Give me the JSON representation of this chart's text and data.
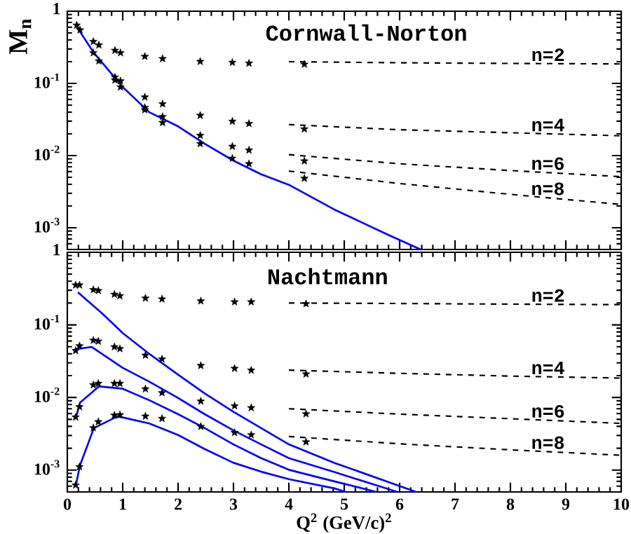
{
  "chart_data": [
    {
      "type": "line",
      "title": "Cornwall-Norton",
      "ylabel": "M$_{n}$",
      "xlim": [
        0,
        10
      ],
      "xticks": [
        0,
        1,
        2,
        3,
        4,
        5,
        6,
        7,
        8,
        9,
        10
      ],
      "ylim": [
        0.0005,
        1
      ],
      "yticks": [
        {
          "value": 0.001,
          "label": "10$^{-3}$"
        },
        {
          "value": 0.01,
          "label": "10$^{-2}$"
        },
        {
          "value": 0.1,
          "label": "10$^{-1}$"
        },
        1
      ],
      "log": "y",
      "tick_labels": "y",
      "series": [
        {
          "type": "scatter",
          "marker": "star",
          "color": "#000000",
          "x": [
            0.17,
            0.23,
            0.47,
            0.57,
            0.86,
            0.96,
            1.4,
            1.72,
            2.4,
            2.98,
            3.28,
            4.28
          ],
          "values": [
            0.64,
            0.55,
            0.38,
            0.34,
            0.286,
            0.265,
            0.236,
            0.22,
            0.201,
            0.195,
            0.19,
            0.184
          ]
        },
        {
          "type": "scatter",
          "marker": "star",
          "color": "#000000",
          "x": [
            0.47,
            0.57,
            0.86,
            0.96,
            1.4,
            1.72,
            2.4,
            2.98,
            3.28,
            4.28
          ],
          "values": [
            0.265,
            0.204,
            0.122,
            0.108,
            0.0646,
            0.0519,
            0.036,
            0.0298,
            0.0277,
            0.0233
          ]
        },
        {
          "type": "scatter",
          "marker": "star",
          "color": "#000000",
          "x": [
            0.86,
            0.96,
            1.4,
            1.72,
            2.4,
            2.98,
            3.28,
            4.28
          ],
          "values": [
            0.111,
            0.089,
            0.0462,
            0.0345,
            0.019,
            0.0134,
            0.0119,
            0.0084
          ]
        },
        {
          "type": "scatter",
          "marker": "star",
          "color": "#000000",
          "x": [
            1.4,
            1.72,
            2.4,
            2.98,
            3.28,
            4.28
          ],
          "values": [
            0.043,
            0.0286,
            0.0146,
            0.00916,
            0.00769,
            0.00483
          ]
        },
        {
          "type": "line",
          "name": "n=2",
          "line_style": "dashed",
          "color": "#000000",
          "x": [
            4,
            6,
            8,
            10
          ],
          "values": [
            0.2,
            0.193,
            0.189,
            0.186
          ]
        },
        {
          "type": "line",
          "name": "n=4",
          "line_style": "dashed",
          "color": "#000000",
          "x": [
            4,
            6,
            8,
            10
          ],
          "values": [
            0.0269,
            0.0228,
            0.0207,
            0.0188
          ]
        },
        {
          "type": "line",
          "name": "n=6",
          "line_style": "dashed",
          "color": "#000000",
          "x": [
            4,
            6,
            8,
            10
          ],
          "values": [
            0.0103,
            0.0077,
            0.0062,
            0.0051
          ]
        },
        {
          "type": "line",
          "name": "n=8",
          "line_style": "dashed",
          "color": "#000000",
          "x": [
            4,
            6,
            8,
            10
          ],
          "values": [
            0.0061,
            0.0041,
            0.0029,
            0.0021
          ]
        },
        {
          "type": "line",
          "line_style": "solid",
          "color": "#0000ff",
          "x": [
            0.17,
            0.48,
            1.0,
            1.48,
            2.0,
            2.48,
            3.0,
            3.5,
            4.0,
            4.82,
            5.79,
            6.38
          ],
          "values": [
            0.61,
            0.265,
            0.089,
            0.0399,
            0.0254,
            0.0146,
            0.0085,
            0.0055,
            0.00394,
            0.00179,
            0.0008,
            0.0005
          ]
        }
      ]
    },
    {
      "type": "line",
      "title": "Nachtmann",
      "xlabel": "Q$^{2}$ (GeV/c)$^{2}$",
      "xlim": [
        0,
        10
      ],
      "xticks": [
        0,
        1,
        2,
        3,
        4,
        5,
        6,
        7,
        8,
        9,
        10
      ],
      "ylim": [
        0.0005,
        1
      ],
      "yticks": [
        {
          "value": 0.001,
          "label": "10$^{-3}$"
        },
        {
          "value": 0.01,
          "label": "10$^{-2}$"
        },
        {
          "value": 0.1,
          "label": "10$^{-1}$"
        },
        1
      ],
      "log": "y",
      "series": [
        {
          "type": "scatter",
          "marker": "star",
          "color": "#000000",
          "x": [
            0.15,
            0.22,
            0.47,
            0.56,
            0.85,
            0.95,
            1.41,
            1.71,
            2.41,
            3.02,
            3.32,
            4.31
          ],
          "values": [
            0.353,
            0.353,
            0.305,
            0.296,
            0.263,
            0.251,
            0.233,
            0.227,
            0.213,
            0.207,
            0.207,
            0.195
          ]
        },
        {
          "type": "scatter",
          "marker": "star",
          "color": "#000000",
          "x": [
            0.15,
            0.22,
            0.47,
            0.56,
            0.85,
            0.95,
            1.41,
            1.71,
            2.41,
            3.02,
            3.32,
            4.31
          ],
          "values": [
            0.0442,
            0.0513,
            0.0612,
            0.0595,
            0.0497,
            0.0469,
            0.0381,
            0.0338,
            0.0275,
            0.0251,
            0.0237,
            0.021
          ]
        },
        {
          "type": "scatter",
          "marker": "star",
          "color": "#000000",
          "x": [
            0.15,
            0.22,
            0.47,
            0.56,
            0.85,
            0.95,
            1.41,
            1.71,
            2.41,
            3.02,
            3.32,
            4.31
          ],
          "values": [
            0.00536,
            0.00743,
            0.0149,
            0.0156,
            0.0156,
            0.0156,
            0.0131,
            0.0116,
            0.00888,
            0.00766,
            0.00721,
            0.00594
          ]
        },
        {
          "type": "scatter",
          "marker": "star",
          "color": "#000000",
          "x": [
            0.15,
            0.22,
            0.47,
            0.56,
            0.85,
            0.95,
            1.41,
            1.71,
            2.41,
            3.02,
            3.32,
            4.31
          ],
          "values": [
            0.00062,
            0.00111,
            0.00381,
            0.00462,
            0.00569,
            0.00577,
            0.00552,
            0.00513,
            0.00398,
            0.00328,
            0.00305,
            0.00244
          ]
        },
        {
          "type": "line",
          "name": "n=2",
          "line_style": "dashed",
          "color": "#000000",
          "x": [
            4,
            6,
            8,
            10
          ],
          "values": [
            0.2,
            0.197,
            0.193,
            0.19
          ]
        },
        {
          "type": "line",
          "name": "n=4",
          "line_style": "dashed",
          "color": "#000000",
          "x": [
            4,
            6,
            8,
            10
          ],
          "values": [
            0.0238,
            0.0215,
            0.0197,
            0.0185
          ]
        },
        {
          "type": "line",
          "name": "n=6",
          "line_style": "dashed",
          "color": "#000000",
          "x": [
            4,
            6,
            8,
            10
          ],
          "values": [
            0.007,
            0.0059,
            0.0051,
            0.0044
          ]
        },
        {
          "type": "line",
          "name": "n=8",
          "line_style": "dashed",
          "color": "#000000",
          "x": [
            4,
            6,
            8,
            10
          ],
          "values": [
            0.0029,
            0.0023,
            0.0019,
            0.0016
          ]
        },
        {
          "type": "line",
          "line_style": "solid",
          "color": "#0000ff",
          "x": [
            0.19,
            0.65,
            1.0,
            1.48,
            2.0,
            2.48,
            3.0,
            3.5,
            4.0,
            4.82,
            6.3
          ],
          "values": [
            0.282,
            0.139,
            0.0773,
            0.0399,
            0.0206,
            0.0114,
            0.00634,
            0.00379,
            0.00226,
            0.00126,
            0.0005
          ]
        },
        {
          "type": "line",
          "line_style": "solid",
          "color": "#0000ff",
          "x": [
            0.15,
            0.44,
            1.0,
            1.48,
            2.0,
            2.48,
            3.0,
            3.5,
            4.0,
            4.82,
            5.96
          ],
          "values": [
            0.0462,
            0.0497,
            0.0256,
            0.0165,
            0.00986,
            0.00589,
            0.00352,
            0.00226,
            0.00146,
            0.00094,
            0.0005
          ]
        },
        {
          "type": "line",
          "line_style": "solid",
          "color": "#0000ff",
          "x": [
            0.15,
            0.23,
            0.57,
            1.0,
            1.48,
            2.0,
            2.48,
            3.0,
            3.5,
            4.0,
            4.82,
            5.58
          ],
          "values": [
            0.00508,
            0.0085,
            0.0142,
            0.0132,
            0.00916,
            0.00589,
            0.00379,
            0.00226,
            0.00146,
            0.00101,
            0.0007,
            0.0005
          ]
        },
        {
          "type": "line",
          "line_style": "solid",
          "color": "#0000ff",
          "x": [
            0.15,
            0.23,
            0.48,
            0.9,
            1.0,
            1.48,
            2.0,
            2.48,
            3.0,
            3.5,
            4.0,
            4.82,
            5.03
          ],
          "values": [
            0.0006,
            0.00117,
            0.00379,
            0.00547,
            0.00531,
            0.00439,
            0.00304,
            0.00195,
            0.00126,
            0.00095,
            0.00075,
            0.00056,
            0.0005
          ]
        }
      ]
    }
  ]
}
